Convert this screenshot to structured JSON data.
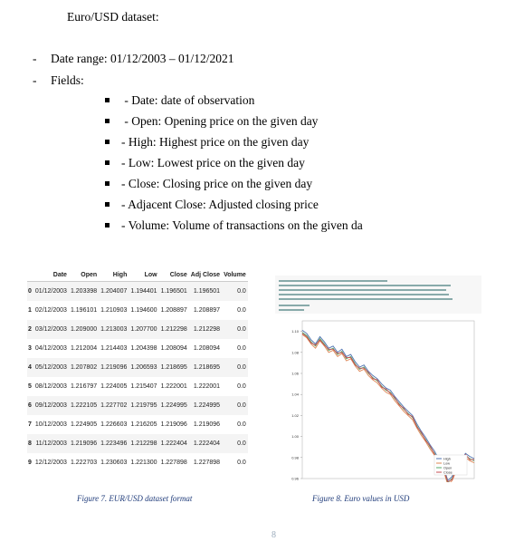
{
  "title": "Euro/USD dataset:",
  "bullets": [
    {
      "dash": "-",
      "text": "Date range: 01/12/2003 – 01/12/2021"
    },
    {
      "dash": "-",
      "text": "Fields:"
    }
  ],
  "fields": [
    " - Date: date of observation",
    " - Open: Opening price on the given day",
    "- High: Highest price on the given day",
    "- Low: Lowest price on the given day",
    "- Close: Closing price on the given day",
    "- Adjacent Close: Adjusted closing price",
    "- Volume: Volume of transactions on the given da"
  ],
  "table": {
    "columns": [
      "",
      "Date",
      "Open",
      "High",
      "Low",
      "Close",
      "Adj Close",
      "Volume"
    ],
    "rows": [
      [
        "0",
        "01/12/2003",
        "1.203398",
        "1.204007",
        "1.194401",
        "1.196501",
        "1.196501",
        "0.0"
      ],
      [
        "1",
        "02/12/2003",
        "1.196101",
        "1.210903",
        "1.194600",
        "1.208897",
        "1.208897",
        "0.0"
      ],
      [
        "2",
        "03/12/2003",
        "1.209000",
        "1.213003",
        "1.207700",
        "1.212298",
        "1.212298",
        "0.0"
      ],
      [
        "3",
        "04/12/2003",
        "1.212004",
        "1.214403",
        "1.204398",
        "1.208094",
        "1.208094",
        "0.0"
      ],
      [
        "4",
        "05/12/2003",
        "1.207802",
        "1.219096",
        "1.206593",
        "1.218695",
        "1.218695",
        "0.0"
      ],
      [
        "5",
        "08/12/2003",
        "1.216797",
        "1.224005",
        "1.215407",
        "1.222001",
        "1.222001",
        "0.0"
      ],
      [
        "6",
        "09/12/2003",
        "1.222105",
        "1.227702",
        "1.219795",
        "1.224995",
        "1.224995",
        "0.0"
      ],
      [
        "7",
        "10/12/2003",
        "1.224905",
        "1.226603",
        "1.216205",
        "1.219096",
        "1.219096",
        "0.0"
      ],
      [
        "8",
        "11/12/2003",
        "1.219096",
        "1.223496",
        "1.212298",
        "1.222404",
        "1.222404",
        "0.0"
      ],
      [
        "9",
        "12/12/2003",
        "1.222703",
        "1.230603",
        "1.221300",
        "1.227898",
        "1.227898",
        "0.0"
      ]
    ]
  },
  "chart_data": {
    "type": "line",
    "title": "",
    "xlabel": "",
    "ylabel": "",
    "ylim": [
      0.96,
      1.11
    ],
    "yticks": [
      "1.10",
      "1.08",
      "1.06",
      "1.04",
      "1.02",
      "1.00",
      "0.98",
      "0.96"
    ],
    "x": [
      0,
      1,
      2,
      3,
      4,
      5,
      6,
      7,
      8,
      9,
      10,
      11,
      12,
      13,
      14,
      15,
      16,
      17,
      18,
      19,
      20,
      21,
      22,
      23,
      24,
      25,
      26,
      27,
      28,
      29,
      30,
      31,
      32,
      33,
      34,
      35,
      36,
      37,
      38,
      39
    ],
    "series": [
      {
        "name": "High",
        "color": "#4c72b0",
        "values": [
          1.101,
          1.098,
          1.092,
          1.088,
          1.095,
          1.09,
          1.084,
          1.086,
          1.08,
          1.083,
          1.076,
          1.078,
          1.071,
          1.066,
          1.068,
          1.062,
          1.058,
          1.055,
          1.05,
          1.046,
          1.044,
          1.038,
          1.033,
          1.028,
          1.024,
          1.02,
          1.012,
          1.005,
          0.999,
          0.992,
          0.986,
          0.978,
          0.972,
          0.958,
          0.962,
          0.972,
          0.976,
          0.984,
          0.981,
          0.979
        ]
      },
      {
        "name": "Low",
        "color": "#dd8452",
        "values": [
          1.097,
          1.094,
          1.088,
          1.084,
          1.091,
          1.086,
          1.08,
          1.082,
          1.076,
          1.079,
          1.072,
          1.074,
          1.067,
          1.062,
          1.064,
          1.058,
          1.054,
          1.051,
          1.046,
          1.042,
          1.04,
          1.034,
          1.029,
          1.024,
          1.02,
          1.016,
          1.008,
          1.001,
          0.995,
          0.988,
          0.982,
          0.974,
          0.968,
          0.954,
          0.958,
          0.968,
          0.972,
          0.98,
          0.977,
          0.975
        ]
      },
      {
        "name": "Open",
        "color": "#55a868",
        "values": [
          1.099,
          1.096,
          1.09,
          1.086,
          1.093,
          1.088,
          1.082,
          1.084,
          1.078,
          1.081,
          1.074,
          1.076,
          1.069,
          1.064,
          1.066,
          1.06,
          1.056,
          1.053,
          1.048,
          1.044,
          1.042,
          1.036,
          1.031,
          1.026,
          1.022,
          1.018,
          1.01,
          1.003,
          0.997,
          0.99,
          0.984,
          0.976,
          0.97,
          0.956,
          0.96,
          0.97,
          0.974,
          0.982,
          0.979,
          0.977
        ]
      },
      {
        "name": "Close",
        "color": "#c44e52",
        "values": [
          1.098,
          1.095,
          1.089,
          1.087,
          1.092,
          1.087,
          1.083,
          1.083,
          1.079,
          1.08,
          1.075,
          1.075,
          1.068,
          1.065,
          1.065,
          1.061,
          1.055,
          1.054,
          1.047,
          1.045,
          1.041,
          1.037,
          1.03,
          1.027,
          1.021,
          1.019,
          1.009,
          1.004,
          0.996,
          0.991,
          0.983,
          0.977,
          0.969,
          0.957,
          0.959,
          0.971,
          0.973,
          0.983,
          0.978,
          0.978
        ]
      }
    ],
    "legend": "bottom-right",
    "grid": false
  },
  "captions": {
    "fig7": "Figure 7. EUR/USD dataset format",
    "fig8": "Figure 8. Euro values in USD"
  },
  "page_number": "8"
}
